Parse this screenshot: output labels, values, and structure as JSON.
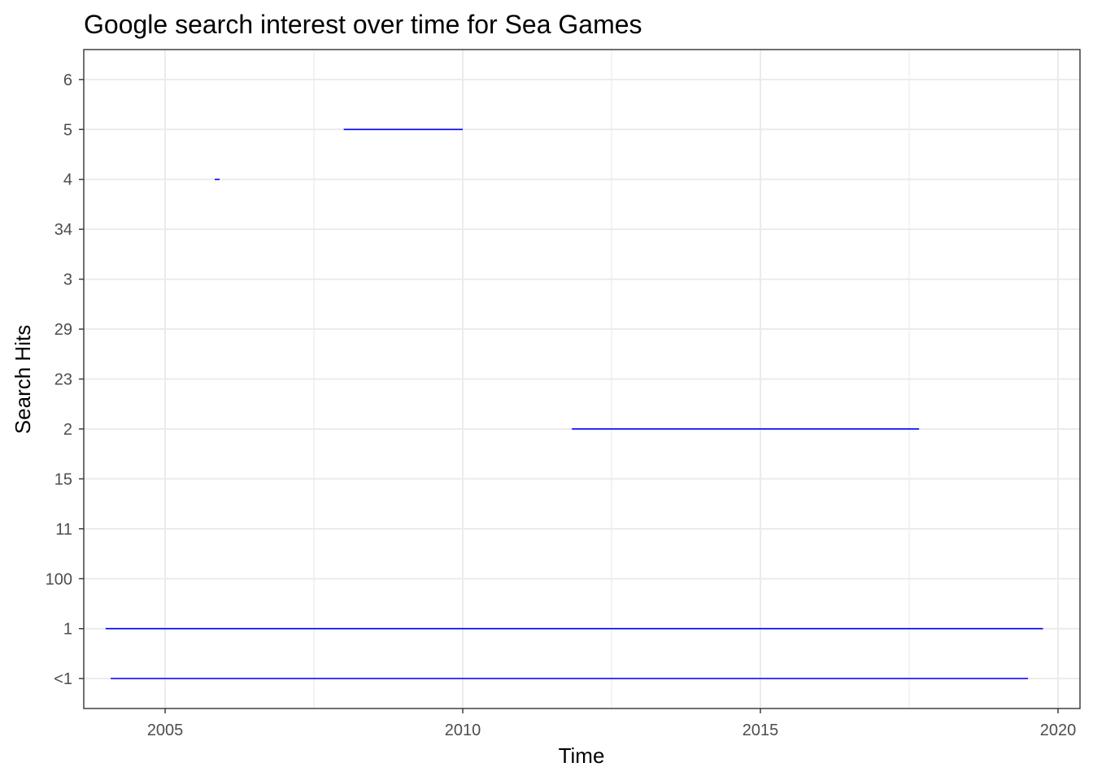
{
  "chart_data": {
    "type": "line",
    "title": "Google search interest over time for Sea Games",
    "xlabel": "Time",
    "ylabel": "Search Hits",
    "x_ticks": [
      "2005",
      "2010",
      "2015",
      "2020"
    ],
    "xlim": [
      "2003-08-20",
      "2020-05-15"
    ],
    "y_categories": [
      "<1",
      "1",
      "100",
      "11",
      "15",
      "2",
      "23",
      "29",
      "3",
      "34",
      "4",
      "5",
      "6"
    ],
    "grid": true,
    "legend": "none",
    "line_color": "#0000ff",
    "segments": [
      {
        "y": "<1",
        "x_start": "2004-02-01",
        "x_end": "2019-07-01"
      },
      {
        "y": "1",
        "x_start": "2004-01-01",
        "x_end": "2019-10-01"
      },
      {
        "y": "2",
        "x_start": "2011-11-01",
        "x_end": "2017-09-01"
      },
      {
        "y": "4",
        "x_start": "2005-11-01",
        "x_end": "2005-12-01"
      },
      {
        "y": "5",
        "x_start": "2008-01-01",
        "x_end": "2010-01-01"
      }
    ]
  }
}
